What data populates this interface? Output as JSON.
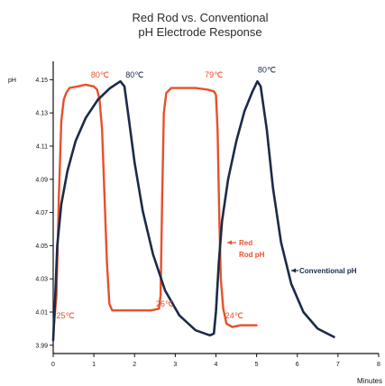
{
  "chart_data": {
    "type": "line",
    "title_lines": [
      "Red Rod vs. Conventional",
      "pH Electrode Response"
    ],
    "xlabel": "Minutes",
    "ylabel": "pH",
    "xlim": [
      0,
      8
    ],
    "ylim": [
      3.985,
      4.16
    ],
    "x_ticks": [
      {
        "value": 0,
        "label": "0"
      },
      {
        "value": 1,
        "label": "1"
      },
      {
        "value": 2,
        "label": "2"
      },
      {
        "value": 3,
        "label": "3"
      },
      {
        "value": 4,
        "label": "4"
      },
      {
        "value": 5,
        "label": "5"
      },
      {
        "value": 6,
        "label": "6"
      },
      {
        "value": 7,
        "label": "7"
      },
      {
        "value": 8,
        "label": "8"
      }
    ],
    "y_ticks": [
      {
        "value": 3.99,
        "label": "3.99"
      },
      {
        "value": 4.01,
        "label": "4.01"
      },
      {
        "value": 4.03,
        "label": "4.03"
      },
      {
        "value": 4.05,
        "label": "4.05"
      },
      {
        "value": 4.07,
        "label": "4.07"
      },
      {
        "value": 4.09,
        "label": "4.09"
      },
      {
        "value": 4.11,
        "label": "4.11"
      },
      {
        "value": 4.13,
        "label": "4.13"
      },
      {
        "value": 4.15,
        "label": "4.15"
      }
    ],
    "series": [
      {
        "name": "Red Rod pH",
        "label_lines": [
          "Red",
          "Rod pH"
        ],
        "color": "#e8502a",
        "points": [
          [
            0.02,
            4.003
          ],
          [
            0.08,
            4.02
          ],
          [
            0.14,
            4.08
          ],
          [
            0.2,
            4.125
          ],
          [
            0.26,
            4.138
          ],
          [
            0.32,
            4.142
          ],
          [
            0.4,
            4.145
          ],
          [
            0.6,
            4.146
          ],
          [
            0.8,
            4.147
          ],
          [
            1.0,
            4.146
          ],
          [
            1.08,
            4.144
          ],
          [
            1.14,
            4.138
          ],
          [
            1.2,
            4.12
          ],
          [
            1.26,
            4.08
          ],
          [
            1.32,
            4.04
          ],
          [
            1.38,
            4.015
          ],
          [
            1.45,
            4.011
          ],
          [
            1.6,
            4.011
          ],
          [
            2.0,
            4.011
          ],
          [
            2.4,
            4.011
          ],
          [
            2.6,
            4.012
          ],
          [
            2.64,
            4.02
          ],
          [
            2.68,
            4.08
          ],
          [
            2.72,
            4.13
          ],
          [
            2.78,
            4.142
          ],
          [
            2.9,
            4.145
          ],
          [
            3.2,
            4.145
          ],
          [
            3.5,
            4.145
          ],
          [
            3.8,
            4.144
          ],
          [
            3.95,
            4.143
          ],
          [
            4.0,
            4.141
          ],
          [
            4.04,
            4.12
          ],
          [
            4.08,
            4.07
          ],
          [
            4.12,
            4.03
          ],
          [
            4.18,
            4.012
          ],
          [
            4.26,
            4.003
          ],
          [
            4.4,
            4.001
          ],
          [
            4.6,
            4.002
          ],
          [
            5.0,
            4.002
          ]
        ]
      },
      {
        "name": "Conventional pH",
        "color": "#1c2a4a",
        "points": [
          [
            0.0,
            3.993
          ],
          [
            0.05,
            4.02
          ],
          [
            0.1,
            4.05
          ],
          [
            0.2,
            4.075
          ],
          [
            0.35,
            4.095
          ],
          [
            0.55,
            4.113
          ],
          [
            0.8,
            4.127
          ],
          [
            1.1,
            4.138
          ],
          [
            1.4,
            4.145
          ],
          [
            1.65,
            4.149
          ],
          [
            1.75,
            4.146
          ],
          [
            1.85,
            4.128
          ],
          [
            2.0,
            4.1
          ],
          [
            2.2,
            4.071
          ],
          [
            2.45,
            4.045
          ],
          [
            2.75,
            4.023
          ],
          [
            3.1,
            4.008
          ],
          [
            3.5,
            3.999
          ],
          [
            3.85,
            3.996
          ],
          [
            3.95,
            3.997
          ],
          [
            4.0,
            4.01
          ],
          [
            4.07,
            4.04
          ],
          [
            4.15,
            4.065
          ],
          [
            4.3,
            4.09
          ],
          [
            4.5,
            4.113
          ],
          [
            4.7,
            4.131
          ],
          [
            4.9,
            4.143
          ],
          [
            5.02,
            4.149
          ],
          [
            5.1,
            4.146
          ],
          [
            5.25,
            4.12
          ],
          [
            5.4,
            4.085
          ],
          [
            5.6,
            4.052
          ],
          [
            5.85,
            4.027
          ],
          [
            6.15,
            4.01
          ],
          [
            6.5,
            4.0
          ],
          [
            6.9,
            3.995
          ]
        ]
      }
    ],
    "annotations": [
      {
        "text": "80℃",
        "x": 1.15,
        "y": 4.149,
        "color": "#e8502a"
      },
      {
        "text": "80℃",
        "x": 2.0,
        "y": 4.149,
        "color": "#1c2a4a"
      },
      {
        "text": "79℃",
        "x": 3.95,
        "y": 4.149,
        "color": "#e8502a"
      },
      {
        "text": "80℃",
        "x": 5.25,
        "y": 4.152,
        "color": "#1c2a4a"
      },
      {
        "text": "25℃",
        "x": 0.3,
        "y": 4.004,
        "color": "#e8502a"
      },
      {
        "text": "26℃",
        "x": 2.75,
        "y": 4.011,
        "color": "#e8502a"
      },
      {
        "text": "24℃",
        "x": 4.45,
        "y": 4.004,
        "color": "#e8502a"
      }
    ]
  }
}
